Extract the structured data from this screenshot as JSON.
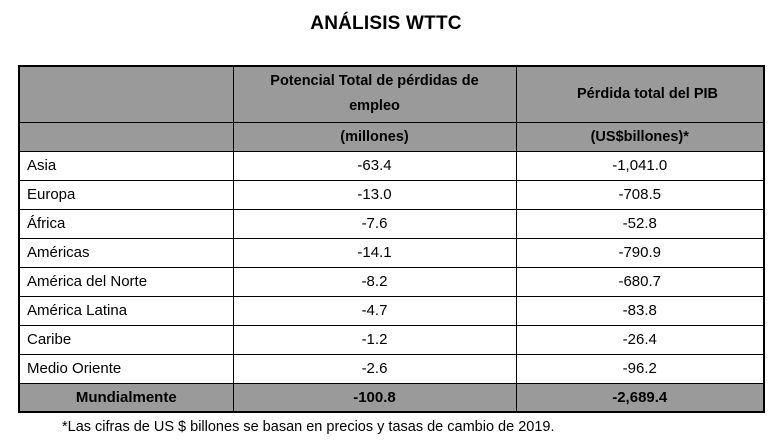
{
  "page": {
    "title": "ANÁLISIS WTTC"
  },
  "table": {
    "columns": [
      {
        "label": "",
        "sublabel": ""
      },
      {
        "label": "Potencial Total de pérdidas de empleo",
        "sublabel": "(millones)"
      },
      {
        "label": "Pérdida total del PIB",
        "sublabel": "(US$billones)*"
      }
    ],
    "rows": [
      {
        "region": "Asia",
        "empleo": "-63.4",
        "pib": "-1,041.0"
      },
      {
        "region": "Europa",
        "empleo": "-13.0",
        "pib": "-708.5"
      },
      {
        "region": "África",
        "empleo": "-7.6",
        "pib": "-52.8"
      },
      {
        "region": "Américas",
        "empleo": "-14.1",
        "pib": "-790.9"
      },
      {
        "region": "América del Norte",
        "empleo": "-8.2",
        "pib": "-680.7"
      },
      {
        "region": "América Latina",
        "empleo": "-4.7",
        "pib": "-83.8"
      },
      {
        "region": "Caribe",
        "empleo": "-1.2",
        "pib": "-26.4"
      },
      {
        "region": "Medio Oriente",
        "empleo": "-2.6",
        "pib": "-96.2"
      }
    ],
    "total_row": {
      "region": "Mundialmente",
      "empleo": "-100.8",
      "pib": "-2,689.4"
    }
  },
  "footnote": "*Las cifras de US $ billones se basan en precios y tasas de cambio de 2019.",
  "colors": {
    "header_bg": "#9a9a9a",
    "border": "#000000",
    "text": "#000000",
    "background": "#ffffff"
  }
}
